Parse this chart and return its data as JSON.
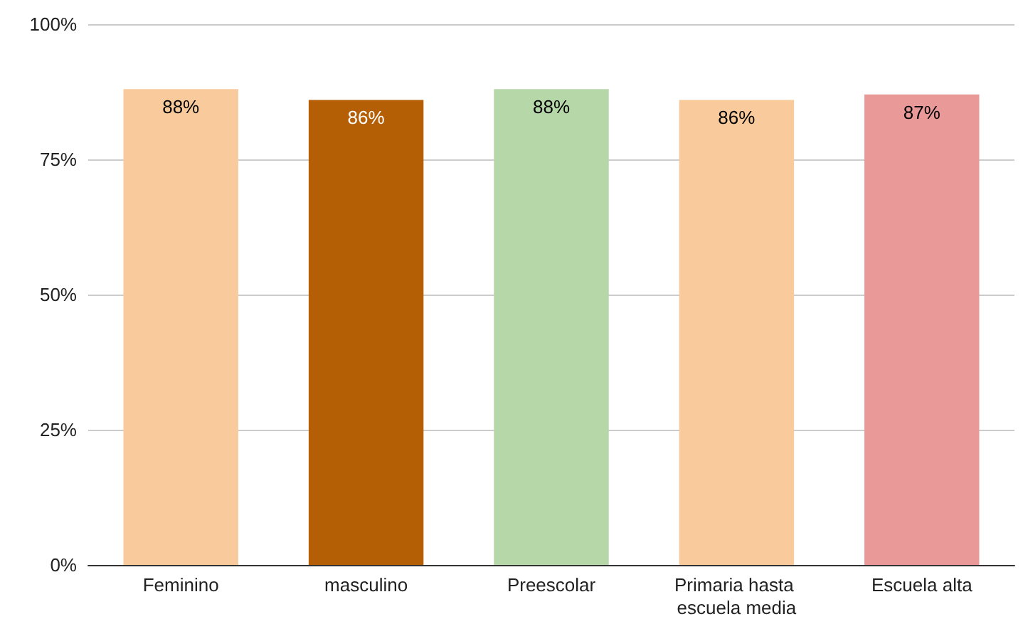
{
  "chart_data": {
    "type": "bar",
    "categories": [
      "Feminino",
      "masculino",
      "Preescolar",
      "Primaria hasta escuela media",
      "Escuela alta"
    ],
    "values": [
      88,
      86,
      88,
      86,
      87
    ],
    "colors": [
      "#f9cb9c",
      "#b45f06",
      "#b6d7a8",
      "#f9cb9c",
      "#ea9999"
    ],
    "value_labels": [
      "88%",
      "86%",
      "88%",
      "86%",
      "87%"
    ],
    "ylim": [
      0,
      100
    ],
    "yticks": [
      {
        "value": 0,
        "label": "0%"
      },
      {
        "value": 25,
        "label": "25%"
      },
      {
        "value": 50,
        "label": "50%"
      },
      {
        "value": 75,
        "label": "75%"
      },
      {
        "value": 100,
        "label": "100%"
      }
    ],
    "grid": "y"
  }
}
